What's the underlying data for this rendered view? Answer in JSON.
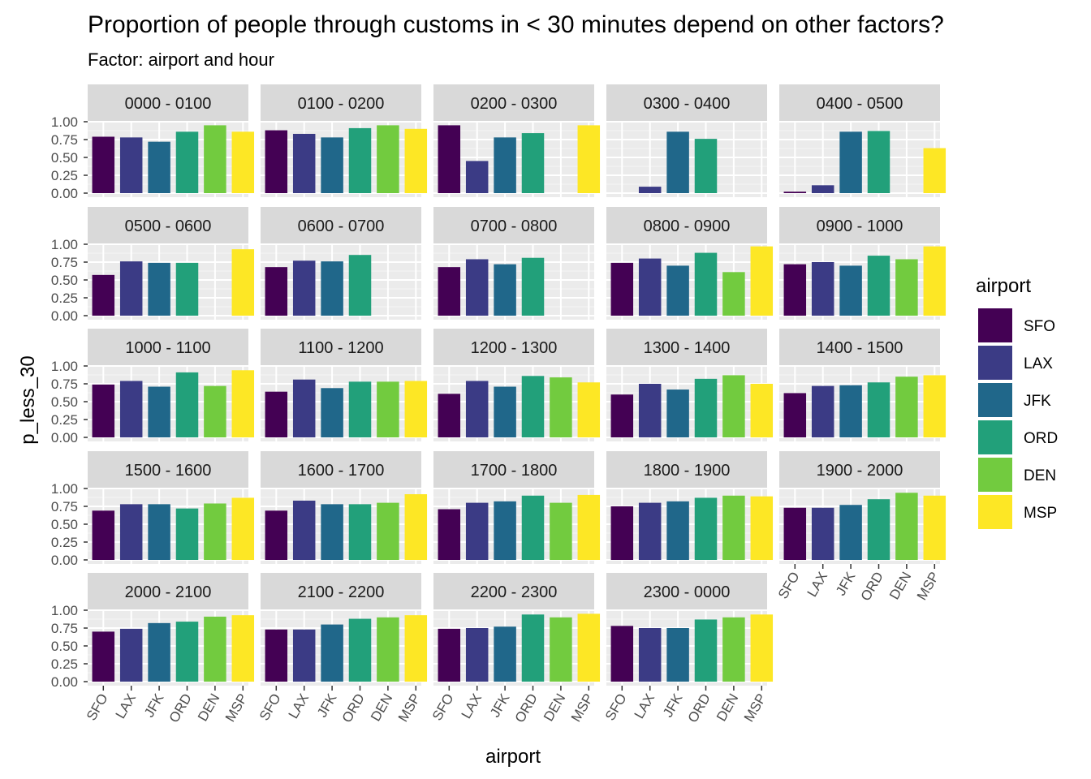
{
  "chart_data": {
    "type": "bar",
    "title": "Proportion of people through customs in < 30 minutes depend on other factors?",
    "subtitle": "Factor: airport and hour",
    "xlabel": "airport",
    "ylabel": "p_less_30",
    "ylim": [
      0,
      1
    ],
    "yticks": [
      "0.00",
      "0.25",
      "0.50",
      "0.75",
      "1.00"
    ],
    "categories": [
      "SFO",
      "LAX",
      "JFK",
      "ORD",
      "DEN",
      "MSP"
    ],
    "legend": {
      "title": "airport",
      "position": "right",
      "items": [
        {
          "label": "SFO",
          "color": "#440154"
        },
        {
          "label": "LAX",
          "color": "#3B3B85"
        },
        {
          "label": "JFK",
          "color": "#20678A"
        },
        {
          "label": "ORD",
          "color": "#22A07A"
        },
        {
          "label": "DEN",
          "color": "#72CB3F"
        },
        {
          "label": "MSP",
          "color": "#FDE725"
        }
      ]
    },
    "panels": [
      {
        "label": "0000 - 0100",
        "values": [
          0.79,
          0.78,
          0.72,
          0.86,
          0.95,
          0.86
        ]
      },
      {
        "label": "0100 - 0200",
        "values": [
          0.88,
          0.83,
          0.78,
          0.91,
          0.95,
          0.9
        ]
      },
      {
        "label": "0200 - 0300",
        "values": [
          0.95,
          0.45,
          0.78,
          0.84,
          null,
          0.95
        ]
      },
      {
        "label": "0300 - 0400",
        "values": [
          null,
          0.09,
          0.86,
          0.76,
          null,
          null
        ]
      },
      {
        "label": "0400 - 0500",
        "values": [
          0.02,
          0.11,
          0.86,
          0.87,
          null,
          0.63
        ]
      },
      {
        "label": "0500 - 0600",
        "values": [
          0.57,
          0.76,
          0.74,
          0.74,
          null,
          0.93
        ]
      },
      {
        "label": "0600 - 0700",
        "values": [
          0.68,
          0.77,
          0.76,
          0.85,
          null,
          null
        ]
      },
      {
        "label": "0700 - 0800",
        "values": [
          0.68,
          0.79,
          0.72,
          0.81,
          null,
          null
        ]
      },
      {
        "label": "0800 - 0900",
        "values": [
          0.74,
          0.8,
          0.7,
          0.88,
          0.61,
          0.97
        ]
      },
      {
        "label": "0900 - 1000",
        "values": [
          0.72,
          0.75,
          0.7,
          0.84,
          0.79,
          0.97
        ]
      },
      {
        "label": "1000 - 1100",
        "values": [
          0.74,
          0.79,
          0.71,
          0.91,
          0.72,
          0.94
        ]
      },
      {
        "label": "1100 - 1200",
        "values": [
          0.64,
          0.81,
          0.69,
          0.78,
          0.78,
          0.79
        ]
      },
      {
        "label": "1200 - 1300",
        "values": [
          0.61,
          0.79,
          0.71,
          0.86,
          0.84,
          0.77
        ]
      },
      {
        "label": "1300 - 1400",
        "values": [
          0.6,
          0.75,
          0.67,
          0.82,
          0.87,
          0.75
        ]
      },
      {
        "label": "1400 - 1500",
        "values": [
          0.62,
          0.72,
          0.73,
          0.77,
          0.85,
          0.87
        ]
      },
      {
        "label": "1500 - 1600",
        "values": [
          0.69,
          0.78,
          0.78,
          0.72,
          0.79,
          0.87
        ]
      },
      {
        "label": "1600 - 1700",
        "values": [
          0.69,
          0.83,
          0.78,
          0.78,
          0.8,
          0.92
        ]
      },
      {
        "label": "1700 - 1800",
        "values": [
          0.71,
          0.8,
          0.82,
          0.9,
          0.8,
          0.91
        ]
      },
      {
        "label": "1800 - 1900",
        "values": [
          0.75,
          0.8,
          0.82,
          0.87,
          0.9,
          0.89
        ]
      },
      {
        "label": "1900 - 2000",
        "values": [
          0.73,
          0.73,
          0.77,
          0.85,
          0.94,
          0.9
        ]
      },
      {
        "label": "2000 - 2100",
        "values": [
          0.7,
          0.74,
          0.82,
          0.84,
          0.91,
          0.93
        ]
      },
      {
        "label": "2100 - 2200",
        "values": [
          0.73,
          0.73,
          0.8,
          0.88,
          0.9,
          0.93
        ]
      },
      {
        "label": "2200 - 2300",
        "values": [
          0.74,
          0.75,
          0.77,
          0.94,
          0.9,
          0.95
        ]
      },
      {
        "label": "2300 - 0000",
        "values": [
          0.78,
          0.75,
          0.75,
          0.87,
          0.9,
          0.94
        ]
      }
    ],
    "grid": true,
    "layout": "facet_wrap 5 columns"
  }
}
